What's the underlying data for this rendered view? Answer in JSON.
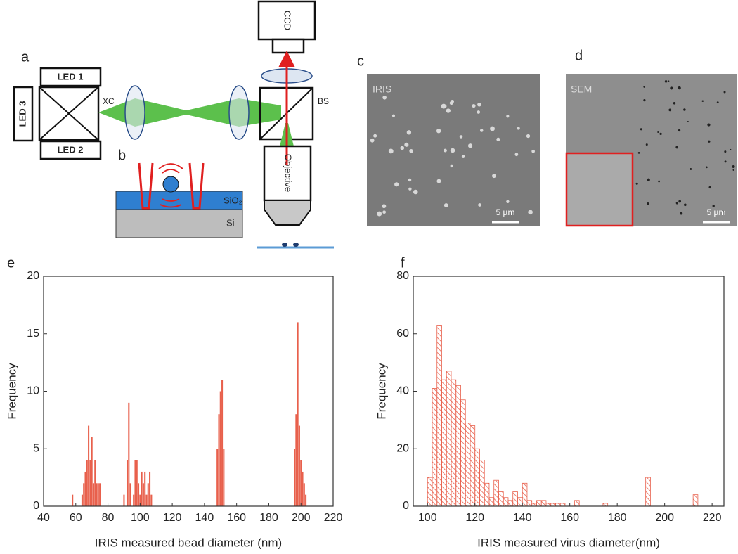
{
  "figure": {
    "panels": {
      "a": "a",
      "b": "b",
      "c": "c",
      "d": "d"
    },
    "diagram": {
      "led1": "LED 1",
      "led2": "LED 2",
      "led3": "LED 3",
      "xc": "XC",
      "bs": "BS",
      "ccd": "CCD",
      "objective": "Objective",
      "sio2": "SiO₂",
      "si": "Si"
    },
    "images": {
      "c_label": "IRIS",
      "d_label": "SEM",
      "c_scale": "5 µm",
      "d_scale": "5 µm"
    }
  },
  "chart_data": [
    {
      "type": "bar",
      "panel": "e",
      "xlabel": "IRIS measured bead diameter (nm)",
      "ylabel": "Frequency",
      "color": "#e8604c",
      "x": [
        58,
        64,
        65,
        66,
        67,
        68,
        69,
        70,
        71,
        72,
        73,
        74,
        75,
        90,
        92,
        93,
        94,
        96,
        97,
        98,
        99,
        100,
        101,
        102,
        103,
        104,
        105,
        106,
        107,
        148,
        149,
        150,
        151,
        152,
        196,
        197,
        198,
        199,
        200,
        201,
        202,
        203
      ],
      "values": [
        1,
        1,
        2,
        3,
        4,
        7,
        4,
        6,
        2,
        4,
        2,
        2,
        2,
        1,
        4,
        9,
        2,
        1,
        4,
        4,
        2,
        1,
        3,
        2,
        3,
        1,
        2,
        3,
        1,
        5,
        8,
        10,
        11,
        5,
        5,
        8,
        16,
        7,
        4,
        3,
        2,
        1
      ],
      "xlim": [
        40,
        220
      ],
      "xticks": [
        40,
        60,
        80,
        100,
        120,
        140,
        160,
        180,
        200,
        220
      ],
      "ylim": [
        0,
        20
      ],
      "yticks": [
        0,
        5,
        10,
        15,
        20
      ]
    },
    {
      "type": "histogram",
      "panel": "f",
      "xlabel": "IRIS measured virus diameter(nm)",
      "ylabel": "Frequency",
      "color": "#e8604c",
      "hatch": true,
      "bins": [
        100,
        102,
        104,
        106,
        108,
        110,
        112,
        114,
        116,
        118,
        120,
        122,
        124,
        126,
        128,
        130,
        132,
        134,
        136,
        138,
        140,
        142,
        144,
        146,
        148,
        150,
        152,
        154,
        156,
        158,
        160,
        162,
        164,
        166,
        168,
        170,
        172,
        174,
        176,
        178,
        180,
        182,
        184,
        186,
        188,
        190,
        192,
        194,
        196,
        198,
        200,
        202,
        204,
        206,
        208,
        210,
        212,
        214,
        216
      ],
      "values": [
        10,
        41,
        63,
        44,
        47,
        44,
        42,
        37,
        29,
        28,
        20,
        16,
        8,
        3,
        9,
        5,
        3,
        2,
        5,
        3,
        8,
        2,
        1,
        2,
        2,
        1,
        1,
        1,
        1,
        0,
        0,
        2,
        0,
        0,
        0,
        0,
        0,
        1,
        0,
        0,
        0,
        0,
        0,
        0,
        0,
        0,
        10,
        0,
        0,
        0,
        0,
        0,
        0,
        0,
        0,
        0,
        4,
        0
      ],
      "xlim": [
        94,
        225
      ],
      "xticks": [
        100,
        120,
        140,
        160,
        180,
        200,
        220
      ],
      "ylim": [
        0,
        80
      ],
      "yticks": [
        0,
        20,
        40,
        60,
        80
      ]
    }
  ]
}
